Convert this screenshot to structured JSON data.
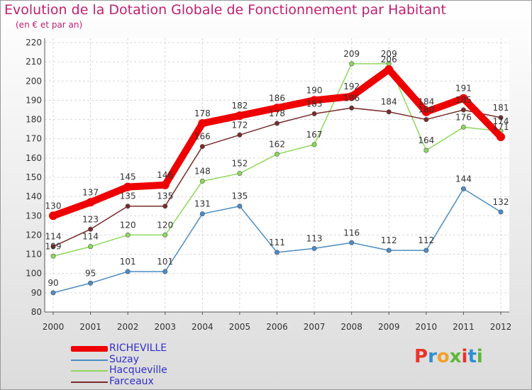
{
  "title": "Evolution de la Dotation Globale de Fonctionnement par Habitant",
  "subtitle": "(en € et par an)",
  "logo": {
    "text": "Proxiti",
    "colors": [
      "#e8342a",
      "#2c8fd6",
      "#f2a22a",
      "#5cb83a",
      "#e8342a",
      "#2c8fd6",
      "#5cb83a"
    ]
  },
  "chart_data": {
    "type": "line",
    "title": "Evolution de la Dotation Globale de Fonctionnement par Habitant",
    "subtitle": "(en € et par an)",
    "xlabel": "",
    "ylabel": "",
    "categories": [
      "2000",
      "2001",
      "2002",
      "2003",
      "2004",
      "2005",
      "2006",
      "2007",
      "2008",
      "2009",
      "2010",
      "2011",
      "2012"
    ],
    "ylim": [
      80,
      220
    ],
    "yticks": [
      80,
      90,
      100,
      110,
      120,
      130,
      140,
      150,
      160,
      170,
      180,
      190,
      200,
      210,
      220
    ],
    "grid": true,
    "legend": "bottom-left",
    "series": [
      {
        "name": "RICHEVILLE",
        "color": "#ee0000",
        "values": [
          130,
          137,
          145,
          146,
          178,
          182,
          186,
          190,
          192,
          206,
          184,
          191,
          171
        ]
      },
      {
        "name": "Suzay",
        "color": "#4a8cc6",
        "values": [
          90,
          95,
          101,
          101,
          131,
          135,
          111,
          113,
          116,
          112,
          112,
          144,
          132
        ]
      },
      {
        "name": "Hacqueville",
        "color": "#8ed85a",
        "values": [
          109,
          114,
          120,
          120,
          148,
          152,
          162,
          167,
          209,
          209,
          164,
          176,
          174
        ]
      },
      {
        "name": "Farceaux",
        "color": "#7a2a2a",
        "values": [
          114,
          123,
          135,
          135,
          166,
          172,
          178,
          183,
          186,
          184,
          180,
          185,
          181
        ]
      }
    ]
  }
}
